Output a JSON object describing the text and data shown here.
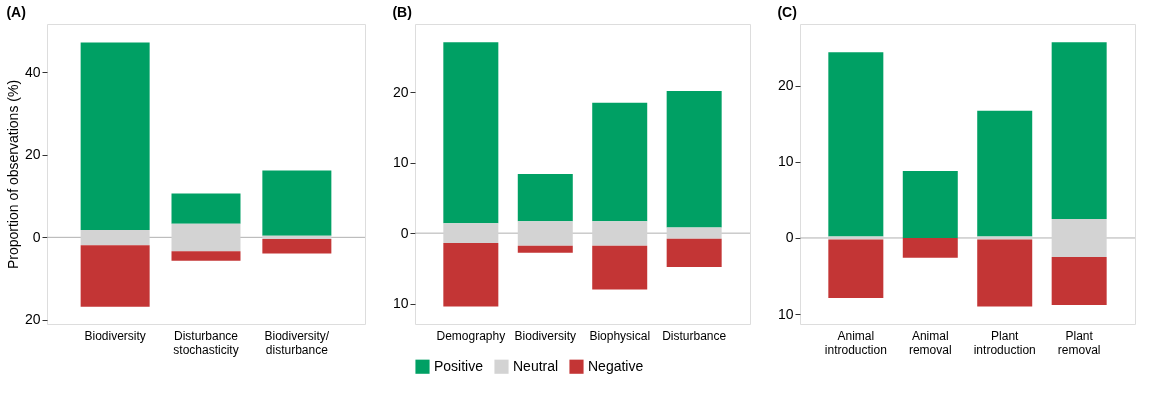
{
  "chart_data": [
    {
      "type": "bar",
      "title": "(A)",
      "ylabel": "Proportion of observations (%)",
      "categories": [
        "Biodiversity",
        "Disturbance\nstochasticity",
        "Biodiversity/\ndisturbance"
      ],
      "ylim": [
        -21,
        51.7
      ],
      "yticks": [
        {
          "value": -20,
          "label": "20"
        },
        0,
        20,
        40
      ],
      "grid": false,
      "legend": false,
      "series": [
        {
          "color": "#00a064",
          "base": [
            1.8,
            3.3,
            0.4
          ],
          "values": [
            45.4,
            7.3,
            15.8
          ]
        },
        {
          "color": "#d3d3d3",
          "base": [
            -1.9,
            -3.4,
            -0.4
          ],
          "values": [
            3.7,
            6.7,
            0.8
          ]
        },
        {
          "color": "#c33535",
          "base": [
            -16.8,
            -5.7,
            -3.9
          ],
          "values": [
            14.9,
            2.3,
            3.5
          ]
        }
      ],
      "ref_lines": [
        {
          "axis": "y",
          "value": 0,
          "color": "#b0b0b0"
        }
      ]
    },
    {
      "type": "bar",
      "title": "(B)",
      "categories": [
        "Demography",
        "Biodiversity",
        "Biophysical",
        "Disturbance"
      ],
      "ylim": [
        -12.9,
        29.7
      ],
      "yticks": [
        {
          "value": -10,
          "label": "10"
        },
        0,
        10,
        20
      ],
      "grid": false,
      "legend": "bottom",
      "series": [
        {
          "name": "Positive",
          "color": "#00a064",
          "base": [
            1.4,
            1.7,
            1.7,
            0.8
          ],
          "values": [
            25.7,
            6.7,
            16.8,
            19.4
          ]
        },
        {
          "name": "Neutral",
          "color": "#d3d3d3",
          "base": [
            -1.4,
            -1.8,
            -1.8,
            -0.8
          ],
          "values": [
            2.8,
            3.5,
            3.5,
            1.6
          ]
        },
        {
          "name": "Negative",
          "color": "#c33535",
          "base": [
            -10.4,
            -2.8,
            -8.0,
            -4.8
          ],
          "values": [
            9.0,
            1.0,
            6.2,
            4.0
          ]
        }
      ],
      "ref_lines": [
        {
          "axis": "y",
          "value": 0,
          "color": "#b0b0b0"
        }
      ]
    },
    {
      "type": "bar",
      "title": "(C)",
      "categories": [
        "Animal\nintroduction",
        "Animal\nremoval",
        "Plant\nintroduction",
        "Plant\nremoval"
      ],
      "ylim": [
        -11.3,
        28.1
      ],
      "yticks": [
        {
          "value": -10,
          "label": "10"
        },
        0,
        10,
        20
      ],
      "grid": false,
      "legend": false,
      "series": [
        {
          "color": "#00a064",
          "base": [
            0.2,
            0,
            0.2,
            2.5
          ],
          "values": [
            24.2,
            8.8,
            16.5,
            23.2
          ]
        },
        {
          "color": "#d3d3d3",
          "base": [
            -0.2,
            null,
            -0.2,
            -2.5
          ],
          "values": [
            0.4,
            null,
            0.4,
            5.0
          ]
        },
        {
          "color": "#c33535",
          "base": [
            -7.9,
            -2.6,
            -9.0,
            -8.8
          ],
          "values": [
            7.7,
            2.6,
            8.8,
            6.3
          ]
        }
      ],
      "ref_lines": [
        {
          "axis": "y",
          "value": 0,
          "color": "#b0b0b0"
        }
      ]
    }
  ]
}
